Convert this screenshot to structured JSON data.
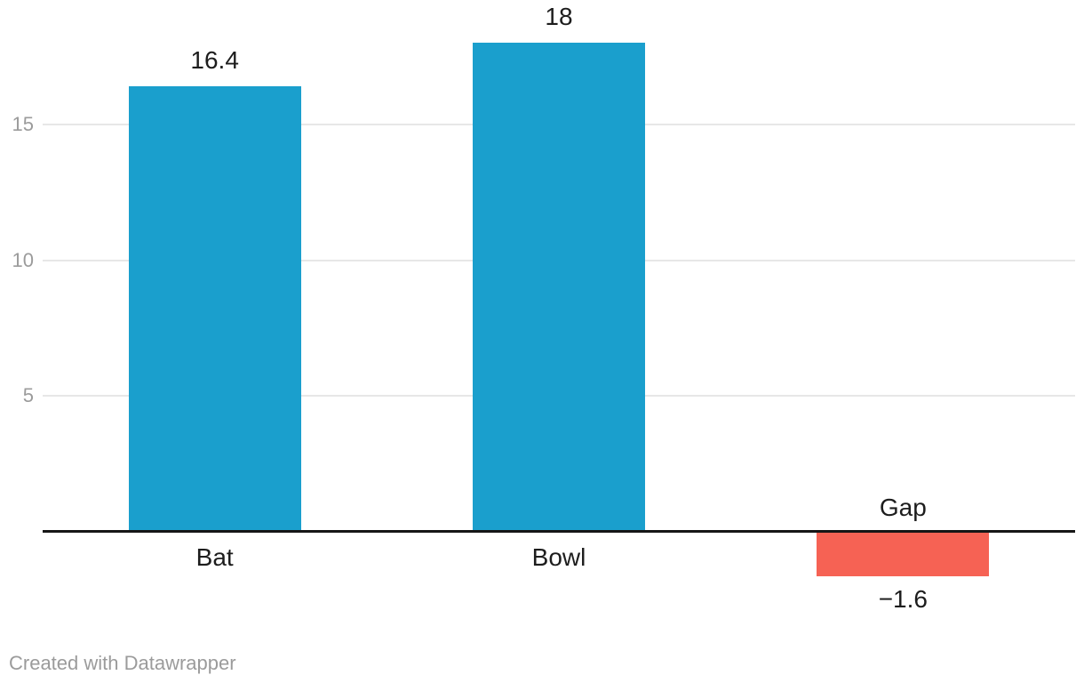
{
  "chart_data": {
    "type": "bar",
    "categories": [
      "Bat",
      "Bowl",
      "Gap"
    ],
    "values": [
      16.4,
      18,
      -1.6
    ],
    "value_labels": [
      "16.4",
      "18",
      "−1.6"
    ],
    "title": "",
    "xlabel": "",
    "ylabel": "",
    "yticks": [
      5,
      10,
      15
    ],
    "ytick_labels": [
      "5",
      "10",
      "15"
    ],
    "ylim": [
      -1.6,
      19.6
    ],
    "grid": true,
    "legend": "none",
    "colors": {
      "positive_bar": "#1A9FCD",
      "negative_bar": "#F66254",
      "gridline": "#E7E7E7",
      "baseline": "#161616",
      "tick_label": "#9B9B9B",
      "value_label": "#1D1D1D",
      "category_label": "#1D1D1D",
      "footer_text": "#9B9B9B",
      "background": "#FFFFFF"
    }
  },
  "footer": {
    "attribution": "Created with Datawrapper"
  }
}
